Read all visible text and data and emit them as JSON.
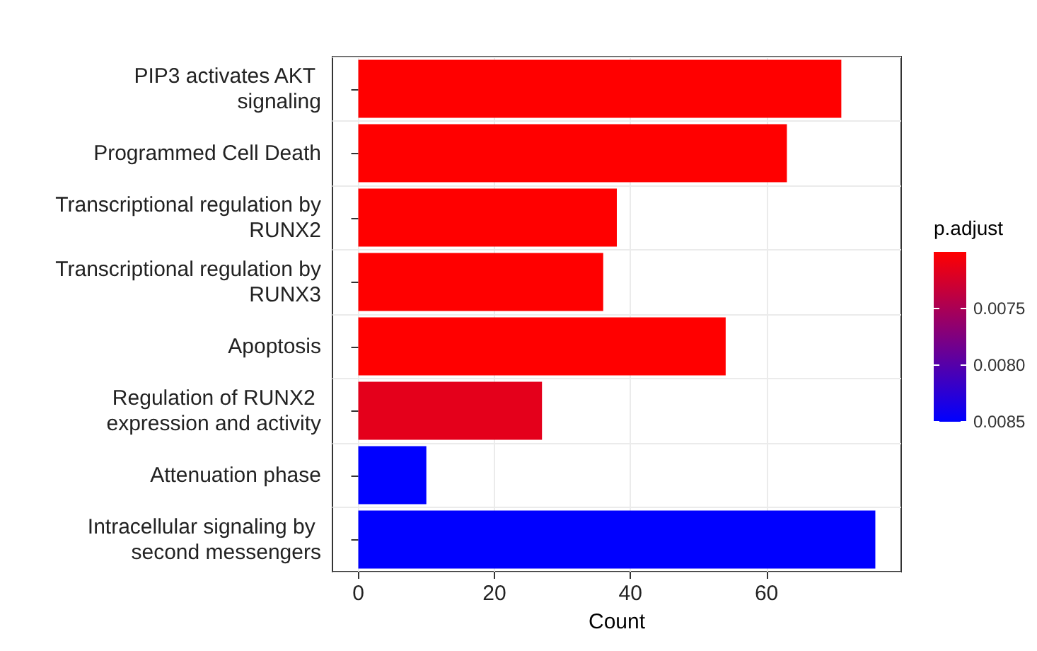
{
  "chart_data": {
    "type": "bar",
    "orientation": "horizontal",
    "xlabel": "Count",
    "clabel": "p.adjust",
    "categories": [
      "PIP3 activates AKT signaling",
      "Programmed Cell Death",
      "Transcriptional regulation by RUNX2",
      "Transcriptional regulation by RUNX3",
      "Apoptosis",
      "Regulation of RUNX2 expression and activity",
      "Attenuation phase",
      "Intracellular signaling by second messengers"
    ],
    "values": [
      71,
      63,
      38,
      36,
      54,
      27,
      10,
      76
    ],
    "cvalues": [
      0.007,
      0.007,
      0.007,
      0.007,
      0.007,
      0.00716,
      0.0085,
      0.0085
    ],
    "clim": [
      0.007,
      0.0085
    ],
    "cticks": [
      {
        "value": 0.0075,
        "label": "0.0075"
      },
      {
        "value": 0.008,
        "label": "0.0080"
      },
      {
        "value": 0.0085,
        "label": "0.0085"
      }
    ],
    "xlim": [
      -3.8,
      79.8
    ],
    "xticks": [
      0,
      20,
      40,
      60
    ],
    "grid": true
  }
}
